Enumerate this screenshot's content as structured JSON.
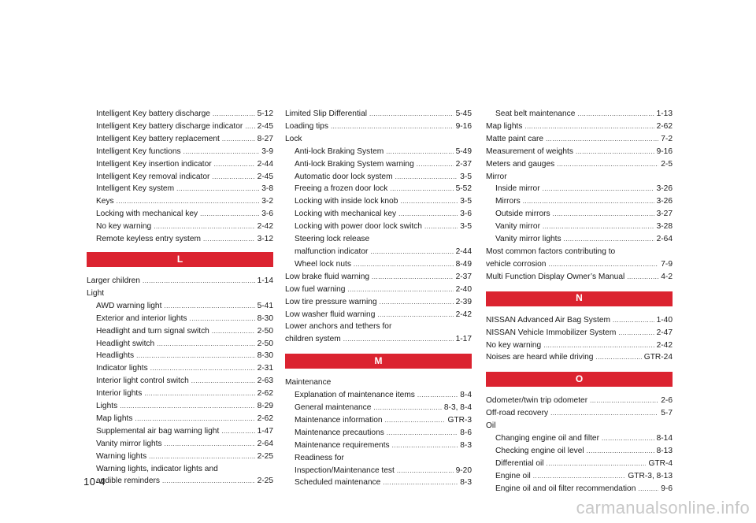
{
  "page_number": "10-4",
  "watermark": "carmanualsonline.info",
  "col1": {
    "items": [
      {
        "text": "Intelligent Key battery discharge",
        "page": "5-12",
        "indent": true
      },
      {
        "text": "Intelligent Key battery discharge indicator",
        "page": "2-45",
        "indent": true
      },
      {
        "text": "Intelligent Key battery replacement",
        "page": "8-27",
        "indent": true
      },
      {
        "text": "Intelligent Key functions",
        "page": "3-9",
        "indent": true
      },
      {
        "text": "Intelligent Key insertion indicator",
        "page": "2-44",
        "indent": true
      },
      {
        "text": "Intelligent Key removal indicator",
        "page": "2-45",
        "indent": true
      },
      {
        "text": "Intelligent Key system",
        "page": "3-8",
        "indent": true
      },
      {
        "text": "Keys",
        "page": "3-2",
        "indent": true
      },
      {
        "text": "Locking with mechanical key",
        "page": "3-6",
        "indent": true
      },
      {
        "text": "No key warning",
        "page": "2-42",
        "indent": true
      },
      {
        "text": "Remote keyless entry system",
        "page": "3-12",
        "indent": true
      }
    ],
    "header_L": "L",
    "items2": [
      {
        "text": "Larger children",
        "page": "1-14",
        "indent": false
      },
      {
        "text": "Light",
        "page": "",
        "indent": false
      },
      {
        "text": "AWD warning light",
        "page": "5-41",
        "indent": true
      },
      {
        "text": "Exterior and interior lights",
        "page": "8-30",
        "indent": true
      },
      {
        "text": "Headlight and turn signal switch",
        "page": "2-50",
        "indent": true
      },
      {
        "text": "Headlight switch",
        "page": "2-50",
        "indent": true
      },
      {
        "text": "Headlights",
        "page": "8-30",
        "indent": true
      },
      {
        "text": "Indicator lights",
        "page": "2-31",
        "indent": true
      },
      {
        "text": "Interior light control switch",
        "page": "2-63",
        "indent": true
      },
      {
        "text": "Interior lights",
        "page": "2-62",
        "indent": true
      },
      {
        "text": "Lights",
        "page": "8-29",
        "indent": true
      },
      {
        "text": "Map lights",
        "page": "2-62",
        "indent": true
      },
      {
        "text": "Supplemental air bag warning light",
        "page": "1-47",
        "indent": true
      },
      {
        "text": "Vanity mirror lights",
        "page": "2-64",
        "indent": true
      },
      {
        "text": "Warning lights",
        "page": "2-25",
        "indent": true
      },
      {
        "text": "Warning lights, indicator lights and",
        "page": "",
        "indent": true
      },
      {
        "text": "audible reminders",
        "page": "2-25",
        "indent": true
      }
    ]
  },
  "col2": {
    "items": [
      {
        "text": "Limited Slip Differential",
        "page": "5-45",
        "indent": false
      },
      {
        "text": "Loading tips",
        "page": "9-16",
        "indent": false
      },
      {
        "text": "Lock",
        "page": "",
        "indent": false
      },
      {
        "text": "Anti-lock Braking System",
        "page": "5-49",
        "indent": true
      },
      {
        "text": "Anti-lock Braking System warning",
        "page": "2-37",
        "indent": true
      },
      {
        "text": "Automatic door lock system",
        "page": "3-5",
        "indent": true
      },
      {
        "text": "Freeing a frozen door lock",
        "page": "5-52",
        "indent": true
      },
      {
        "text": "Locking with inside lock knob",
        "page": "3-5",
        "indent": true
      },
      {
        "text": "Locking with mechanical key",
        "page": "3-6",
        "indent": true
      },
      {
        "text": "Locking with power door lock switch",
        "page": "3-5",
        "indent": true
      },
      {
        "text": "Steering lock release",
        "page": "",
        "indent": true
      },
      {
        "text": "malfunction indicator",
        "page": "2-44",
        "indent": true
      },
      {
        "text": "Wheel lock nuts",
        "page": "8-49",
        "indent": true
      },
      {
        "text": "Low brake fluid warning",
        "page": "2-37",
        "indent": false
      },
      {
        "text": "Low fuel warning",
        "page": "2-40",
        "indent": false
      },
      {
        "text": "Low tire pressure warning",
        "page": "2-39",
        "indent": false
      },
      {
        "text": "Low washer fluid warning",
        "page": "2-42",
        "indent": false
      },
      {
        "text": "Lower anchors and tethers for",
        "page": "",
        "indent": false
      },
      {
        "text": "children system",
        "page": "1-17",
        "indent": false
      }
    ],
    "header_M": "M",
    "items2": [
      {
        "text": "Maintenance",
        "page": "",
        "indent": false
      },
      {
        "text": "Explanation of maintenance items",
        "page": "8-4",
        "indent": true
      },
      {
        "text": "General maintenance",
        "page": "8-3, 8-4",
        "indent": true
      },
      {
        "text": "Maintenance information",
        "page": "GTR-3",
        "indent": true
      },
      {
        "text": "Maintenance precautions",
        "page": "8-6",
        "indent": true
      },
      {
        "text": "Maintenance requirements",
        "page": "8-3",
        "indent": true
      },
      {
        "text": "Readiness for",
        "page": "",
        "indent": true
      },
      {
        "text": "Inspection/Maintenance test",
        "page": "9-20",
        "indent": true
      },
      {
        "text": "Scheduled maintenance",
        "page": "8-3",
        "indent": true
      }
    ]
  },
  "col3": {
    "items": [
      {
        "text": "Seat belt maintenance",
        "page": "1-13",
        "indent": true
      },
      {
        "text": "Map lights",
        "page": "2-62",
        "indent": false
      },
      {
        "text": "Matte paint care",
        "page": "7-2",
        "indent": false
      },
      {
        "text": "Measurement of weights",
        "page": "9-16",
        "indent": false
      },
      {
        "text": "Meters and gauges",
        "page": "2-5",
        "indent": false
      },
      {
        "text": "Mirror",
        "page": "",
        "indent": false
      },
      {
        "text": "Inside mirror",
        "page": "3-26",
        "indent": true
      },
      {
        "text": "Mirrors",
        "page": "3-26",
        "indent": true
      },
      {
        "text": "Outside mirrors",
        "page": "3-27",
        "indent": true
      },
      {
        "text": "Vanity mirror",
        "page": "3-28",
        "indent": true
      },
      {
        "text": "Vanity mirror lights",
        "page": "2-64",
        "indent": true
      },
      {
        "text": "Most common factors contributing to",
        "page": "",
        "indent": false
      },
      {
        "text": "vehicle corrosion",
        "page": "7-9",
        "indent": false
      },
      {
        "text": "Multi Function Display Owner’s Manual",
        "page": "4-2",
        "indent": false
      }
    ],
    "header_N": "N",
    "items2": [
      {
        "text": "NISSAN Advanced Air Bag System",
        "page": "1-40",
        "indent": false
      },
      {
        "text": "NISSAN Vehicle Immobilizer System",
        "page": "2-47",
        "indent": false
      },
      {
        "text": "No key warning",
        "page": "2-42",
        "indent": false
      },
      {
        "text": "Noises are heard while driving",
        "page": "GTR-24",
        "indent": false
      }
    ],
    "header_O": "O",
    "items3": [
      {
        "text": "Odometer/twin trip odometer",
        "page": "2-6",
        "indent": false
      },
      {
        "text": "Off-road recovery",
        "page": "5-7",
        "indent": false
      },
      {
        "text": "Oil",
        "page": "",
        "indent": false
      },
      {
        "text": "Changing engine oil and filter",
        "page": "8-14",
        "indent": true
      },
      {
        "text": "Checking engine oil level",
        "page": "8-13",
        "indent": true
      },
      {
        "text": "Differential oil",
        "page": "GTR-4",
        "indent": true
      },
      {
        "text": "Engine oil",
        "page": "GTR-3, 8-13",
        "indent": true
      },
      {
        "text": "Engine oil and oil filter recommendation",
        "page": "9-6",
        "indent": true
      }
    ]
  }
}
